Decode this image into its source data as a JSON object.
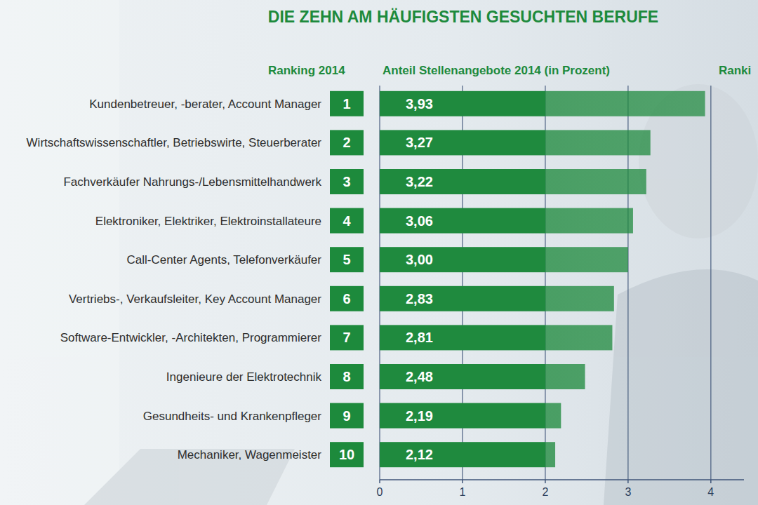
{
  "chart_data": {
    "type": "bar",
    "orientation": "horizontal",
    "title": "DIE ZEHN AM HÄUFIGSTEN GESUCHTEN BERUFE",
    "annotations": [
      "Ranking 2014",
      "Anteil Stellenangebote 2014 (in Prozent)",
      "Ranki"
    ],
    "categories": [
      "Kundenbetreuer, -berater, Account Manager",
      "Wirtschaftswissenschaftler, Betriebswirte, Steuerberater",
      "Fachverkäufer Nahrungs-/Lebensmittelhandwerk",
      "Elektroniker, Elektriker, Elektroinstallateure",
      "Call-Center Agents, Telefonverkäufer",
      "Vertriebs-, Verkaufsleiter, Key Account Manager",
      "Software-Entwickler, -Architekten, Programmierer",
      "Ingenieure der Elektrotechnik",
      "Gesundheits- und Krankenpfleger",
      "Mechaniker, Wagenmeister"
    ],
    "ranks": [
      1,
      2,
      3,
      4,
      5,
      6,
      7,
      8,
      9,
      10
    ],
    "values": [
      3.93,
      3.27,
      3.22,
      3.06,
      3.0,
      2.83,
      2.81,
      2.48,
      2.19,
      2.12
    ],
    "value_labels": [
      "3,93",
      "3,27",
      "3,22",
      "3,06",
      "3,00",
      "2,83",
      "2,81",
      "2,48",
      "2,19",
      "2,12"
    ],
    "color": "#1f8a3e",
    "xlim": [
      0,
      4.4
    ],
    "xticks": [
      0,
      1,
      2,
      3,
      4
    ],
    "grid": true,
    "data_labels": true,
    "tick_labels": "x"
  }
}
